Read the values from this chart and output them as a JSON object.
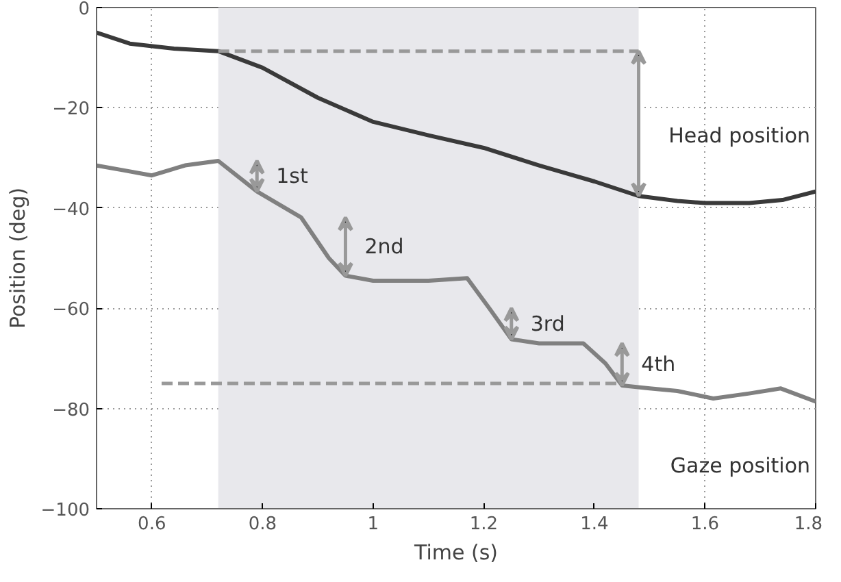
{
  "chart_data": {
    "type": "line",
    "xlabel": "Time (s)",
    "ylabel": "Position (deg)",
    "xlim": [
      0.5,
      1.8
    ],
    "ylim": [
      -100,
      0
    ],
    "xticks": [
      0.6,
      0.8,
      1,
      1.2,
      1.4,
      1.6,
      1.8
    ],
    "yticks": [
      -100,
      -80,
      -60,
      -40,
      -20,
      0
    ],
    "grid": true,
    "series": [
      {
        "color": "#3a3a3a",
        "x": [
          0.5,
          0.56,
          0.64,
          0.72,
          0.8,
          0.9,
          1.0,
          1.1,
          1.2,
          1.3,
          1.4,
          1.48,
          1.55,
          1.6,
          1.68,
          1.74,
          1.8
        ],
        "values": [
          -5,
          -7.2,
          -8.2,
          -8.7,
          -12,
          -18,
          -22.8,
          -25.5,
          -28,
          -31.5,
          -34.7,
          -37.6,
          -38.6,
          -39,
          -39,
          -38.4,
          -36.7
        ]
      },
      {
        "color": "#808080",
        "x": [
          0.5,
          0.55,
          0.6,
          0.66,
          0.72,
          0.79,
          0.87,
          0.92,
          0.95,
          1.0,
          1.1,
          1.17,
          1.21,
          1.25,
          1.3,
          1.38,
          1.42,
          1.45,
          1.5,
          1.55,
          1.615,
          1.68,
          1.737,
          1.8
        ],
        "values": [
          -31.5,
          -32.5,
          -33.5,
          -31.5,
          -30.6,
          -36.7,
          -41.9,
          -50,
          -53.5,
          -54.5,
          -54.5,
          -54,
          -60,
          -66.2,
          -67,
          -67,
          -71,
          -75.4,
          -76,
          -76.5,
          -78,
          -77,
          -76,
          -78.6
        ]
      }
    ],
    "ref_lines": [
      {
        "axis": "y",
        "value": -8.7,
        "color": "#999999",
        "line_style": "dashed"
      },
      {
        "axis": "y",
        "value": -75,
        "color": "#999999",
        "line_style": "dashed"
      }
    ],
    "bands": [
      {
        "axis": "x",
        "from": 0.72,
        "to": 1.48,
        "color": "#e8e8ec"
      }
    ],
    "annotations": [
      {
        "text": "1st",
        "x": 0.79,
        "y": -36.7
      },
      {
        "text": "2nd",
        "x": 0.95,
        "y": -53.5
      },
      {
        "text": "3rd",
        "x": 1.25,
        "y": -66.2
      },
      {
        "text": "4th",
        "x": 1.45,
        "y": -75.4
      },
      "Head position",
      "Gaze position"
    ]
  }
}
